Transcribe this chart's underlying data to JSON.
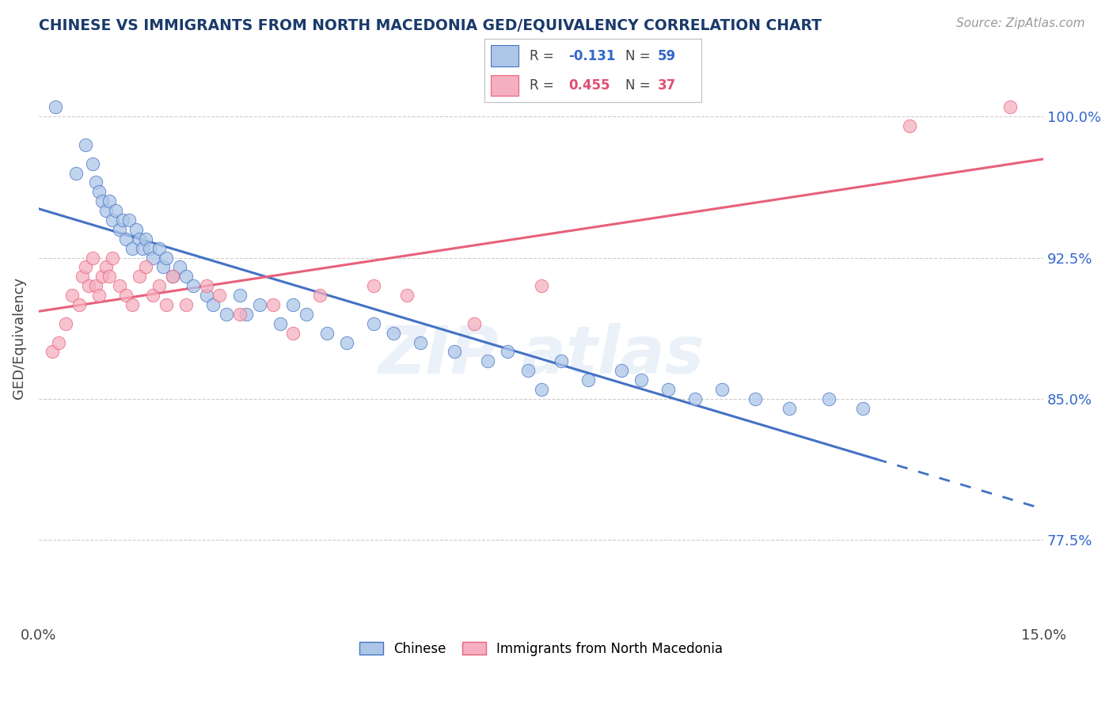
{
  "title": "CHINESE VS IMMIGRANTS FROM NORTH MACEDONIA GED/EQUIVALENCY CORRELATION CHART",
  "source": "Source: ZipAtlas.com",
  "ylabel": "GED/Equivalency",
  "y_ticks": [
    77.5,
    85.0,
    92.5,
    100.0
  ],
  "y_tick_labels": [
    "77.5%",
    "85.0%",
    "92.5%",
    "100.0%"
  ],
  "xmin": 0.0,
  "xmax": 15.0,
  "ymin": 73.0,
  "ymax": 103.5,
  "legend_r1": "-0.131",
  "legend_n1": "59",
  "legend_r2": "0.455",
  "legend_n2": "37",
  "color_chinese": "#adc6e8",
  "color_macedonia": "#f5afc0",
  "color_line_chinese": "#4472c4",
  "color_line_macedonia": "#e8607a",
  "chinese_x": [
    0.25,
    0.55,
    0.7,
    0.8,
    0.85,
    0.9,
    0.95,
    1.0,
    1.05,
    1.1,
    1.15,
    1.2,
    1.25,
    1.3,
    1.35,
    1.4,
    1.45,
    1.5,
    1.55,
    1.6,
    1.65,
    1.7,
    1.8,
    1.85,
    1.9,
    2.0,
    2.1,
    2.2,
    2.3,
    2.5,
    2.6,
    2.8,
    3.0,
    3.1,
    3.3,
    3.6,
    3.8,
    4.0,
    4.3,
    4.6,
    5.0,
    5.3,
    5.7,
    6.2,
    6.7,
    7.0,
    7.3,
    7.8,
    8.2,
    8.7,
    9.0,
    9.4,
    9.8,
    10.2,
    10.7,
    11.2,
    11.8,
    12.3,
    7.5
  ],
  "chinese_y": [
    100.5,
    97.0,
    98.5,
    97.5,
    96.5,
    96.0,
    95.5,
    95.0,
    95.5,
    94.5,
    95.0,
    94.0,
    94.5,
    93.5,
    94.5,
    93.0,
    94.0,
    93.5,
    93.0,
    93.5,
    93.0,
    92.5,
    93.0,
    92.0,
    92.5,
    91.5,
    92.0,
    91.5,
    91.0,
    90.5,
    90.0,
    89.5,
    90.5,
    89.5,
    90.0,
    89.0,
    90.0,
    89.5,
    88.5,
    88.0,
    89.0,
    88.5,
    88.0,
    87.5,
    87.0,
    87.5,
    86.5,
    87.0,
    86.0,
    86.5,
    86.0,
    85.5,
    85.0,
    85.5,
    85.0,
    84.5,
    85.0,
    84.5,
    85.5
  ],
  "macedonia_x": [
    0.2,
    0.3,
    0.4,
    0.5,
    0.6,
    0.65,
    0.7,
    0.75,
    0.8,
    0.85,
    0.9,
    0.95,
    1.0,
    1.05,
    1.1,
    1.2,
    1.3,
    1.4,
    1.5,
    1.6,
    1.7,
    1.8,
    1.9,
    2.0,
    2.2,
    2.5,
    2.7,
    3.0,
    3.5,
    3.8,
    4.2,
    5.0,
    5.5,
    6.5,
    7.5,
    13.0,
    14.5
  ],
  "macedonia_y": [
    87.5,
    88.0,
    89.0,
    90.5,
    90.0,
    91.5,
    92.0,
    91.0,
    92.5,
    91.0,
    90.5,
    91.5,
    92.0,
    91.5,
    92.5,
    91.0,
    90.5,
    90.0,
    91.5,
    92.0,
    90.5,
    91.0,
    90.0,
    91.5,
    90.0,
    91.0,
    90.5,
    89.5,
    90.0,
    88.5,
    90.5,
    91.0,
    90.5,
    89.0,
    91.0,
    99.5,
    100.5
  ],
  "chinese_solid_xmax": 12.5,
  "watermark_text": "ZIPatlas"
}
